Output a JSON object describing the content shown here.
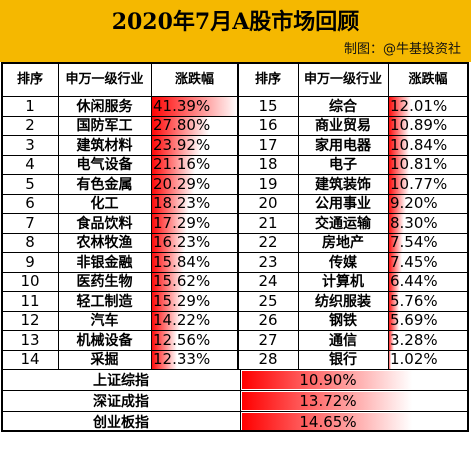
{
  "header": {
    "title": "2020年7月A股市场回顾",
    "credit": "制图：@牛基投资社"
  },
  "table": {
    "col_rank": "排序",
    "col_industry": "申万一级行业",
    "col_change": "涨跌幅"
  },
  "colors": {
    "bar_strong": "#ff0000",
    "bar_light": "#ffffff",
    "banner": "#f5b800",
    "grid": "#000000"
  },
  "chart_data": {
    "type": "table",
    "title": "2020年7月A股市场回顾",
    "value_unit": "%",
    "industries": [
      {
        "rank": "1",
        "name": "休闲服务",
        "value": 41.39,
        "label": "41.39%"
      },
      {
        "rank": "2",
        "name": "国防军工",
        "value": 27.8,
        "label": "27.80%"
      },
      {
        "rank": "3",
        "name": "建筑材料",
        "value": 23.92,
        "label": "23.92%"
      },
      {
        "rank": "4",
        "name": "电气设备",
        "value": 21.16,
        "label": "21.16%"
      },
      {
        "rank": "5",
        "name": "有色金属",
        "value": 20.29,
        "label": "20.29%"
      },
      {
        "rank": "6",
        "name": "化工",
        "value": 18.23,
        "label": "18.23%"
      },
      {
        "rank": "7",
        "name": "食品饮料",
        "value": 17.29,
        "label": "17.29%"
      },
      {
        "rank": "8",
        "name": "农林牧渔",
        "value": 16.23,
        "label": "16.23%"
      },
      {
        "rank": "9",
        "name": "非银金融",
        "value": 15.84,
        "label": "15.84%"
      },
      {
        "rank": "10",
        "name": "医药生物",
        "value": 15.62,
        "label": "15.62%"
      },
      {
        "rank": "11",
        "name": "轻工制造",
        "value": 15.29,
        "label": "15.29%"
      },
      {
        "rank": "12",
        "name": "汽车",
        "value": 14.22,
        "label": "14.22%"
      },
      {
        "rank": "13",
        "name": "机械设备",
        "value": 12.56,
        "label": "12.56%"
      },
      {
        "rank": "14",
        "name": "采掘",
        "value": 12.33,
        "label": "12.33%"
      },
      {
        "rank": "15",
        "name": "综合",
        "value": 12.01,
        "label": "12.01%"
      },
      {
        "rank": "16",
        "name": "商业贸易",
        "value": 10.89,
        "label": "10.89%"
      },
      {
        "rank": "17",
        "name": "家用电器",
        "value": 10.84,
        "label": "10.84%"
      },
      {
        "rank": "18",
        "name": "电子",
        "value": 10.81,
        "label": "10.81%"
      },
      {
        "rank": "19",
        "name": "建筑装饰",
        "value": 10.77,
        "label": "10.77%"
      },
      {
        "rank": "20",
        "name": "公用事业",
        "value": 9.2,
        "label": "9.20%"
      },
      {
        "rank": "21",
        "name": "交通运输",
        "value": 8.3,
        "label": "8.30%"
      },
      {
        "rank": "22",
        "name": "房地产",
        "value": 7.54,
        "label": "7.54%"
      },
      {
        "rank": "23",
        "name": "传媒",
        "value": 7.45,
        "label": "7.45%"
      },
      {
        "rank": "24",
        "name": "计算机",
        "value": 6.44,
        "label": "6.44%"
      },
      {
        "rank": "25",
        "name": "纺织服装",
        "value": 5.76,
        "label": "5.76%"
      },
      {
        "rank": "26",
        "name": "钢铁",
        "value": 5.69,
        "label": "5.69%"
      },
      {
        "rank": "27",
        "name": "通信",
        "value": 3.28,
        "label": "3.28%"
      },
      {
        "rank": "28",
        "name": "银行",
        "value": 1.02,
        "label": "1.02%"
      }
    ],
    "indices": [
      {
        "name": "上证综指",
        "value": 10.9,
        "label": "10.90%"
      },
      {
        "name": "深证成指",
        "value": 13.72,
        "label": "13.72%"
      },
      {
        "name": "创业板指",
        "value": 14.65,
        "label": "14.65%"
      }
    ]
  }
}
